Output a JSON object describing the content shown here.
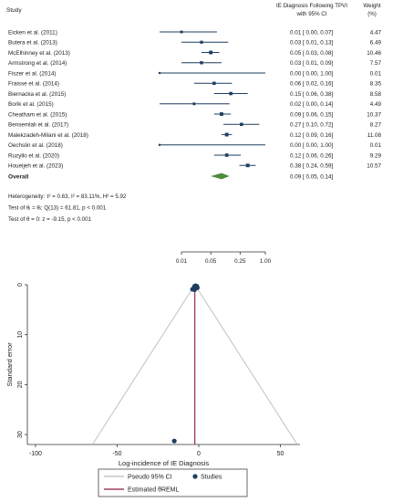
{
  "chart_data": [
    {
      "type": "forest",
      "header": {
        "study": "Study",
        "effect_line1": "IE Diagnosis Following TPVI",
        "effect_line2": "with 95% CI",
        "weight_line1": "Weight",
        "weight_line2": "(%)"
      },
      "studies": [
        {
          "name": "Eicken et al. (2011)",
          "est": 0.01,
          "lo": 0.0,
          "hi": 0.07,
          "ci_text": "0.01 [ 0.00, 0.07]",
          "weight": "4.47"
        },
        {
          "name": "Butera et al. (2013)",
          "est": 0.03,
          "lo": 0.01,
          "hi": 0.13,
          "ci_text": "0.03 [ 0.01, 0.13]",
          "weight": "6.49"
        },
        {
          "name": "McElhinney et al. (2013)",
          "est": 0.05,
          "lo": 0.03,
          "hi": 0.08,
          "ci_text": "0.05 [ 0.03, 0.08]",
          "weight": "10.46"
        },
        {
          "name": "Armstrong et al. (2014)",
          "est": 0.03,
          "lo": 0.01,
          "hi": 0.09,
          "ci_text": "0.03 [ 0.01, 0.09]",
          "weight": "7.57"
        },
        {
          "name": "Fiszer et al. (2014)",
          "est": 0.0,
          "lo": 0.0,
          "hi": 1.0,
          "ci_text": "0.00 [ 0.00, 1.00]",
          "weight": "0.01"
        },
        {
          "name": "Fraisse et al. (2014)",
          "est": 0.06,
          "lo": 0.02,
          "hi": 0.16,
          "ci_text": "0.06 [ 0.02, 0.16]",
          "weight": "8.35"
        },
        {
          "name": "Biernacka et al. (2015)",
          "est": 0.15,
          "lo": 0.06,
          "hi": 0.38,
          "ci_text": "0.15 [ 0.06, 0.38]",
          "weight": "8.58"
        },
        {
          "name": "Borik et al. (2015)",
          "est": 0.02,
          "lo": 0.0,
          "hi": 0.14,
          "ci_text": "0.02 [ 0.00, 0.14]",
          "weight": "4.49"
        },
        {
          "name": "Cheatham et al. (2015)",
          "est": 0.09,
          "lo": 0.06,
          "hi": 0.15,
          "ci_text": "0.09 [ 0.06, 0.15]",
          "weight": "10.37"
        },
        {
          "name": "Bensemlali et al. (2017)",
          "est": 0.27,
          "lo": 0.1,
          "hi": 0.72,
          "ci_text": "0.27 [ 0.10, 0.72]",
          "weight": "8.27"
        },
        {
          "name": "Malekzadeh-Milani et al. (2018)",
          "est": 0.12,
          "lo": 0.09,
          "hi": 0.16,
          "ci_text": "0.12 [ 0.09, 0.16]",
          "weight": "11.08"
        },
        {
          "name": "Oechslin et al. (2018)",
          "est": 0.0,
          "lo": 0.0,
          "hi": 1.0,
          "ci_text": "0.00 [ 0.00, 1.00]",
          "weight": "0.01"
        },
        {
          "name": "Ruzyllo et al. (2020)",
          "est": 0.12,
          "lo": 0.06,
          "hi": 0.26,
          "ci_text": "0.12 [ 0.06, 0.26]",
          "weight": "9.29"
        },
        {
          "name": "Houeijeh et al. (2023)",
          "est": 0.38,
          "lo": 0.24,
          "hi": 0.59,
          "ci_text": "0.38 [ 0.24, 0.59]",
          "weight": "10.57"
        }
      ],
      "overall": {
        "label": "Overall",
        "est": 0.09,
        "lo": 0.05,
        "hi": 0.14,
        "ci_text": "0.09 [ 0.05, 0.14]"
      },
      "notes": [
        "Heterogeneity: τ² = 0.63, I² = 83.11%, H² = 5.92",
        "Test of θᵢ = θⱼ: Q(13) = 61.81, p < 0.001",
        "Test of θ = 0: z = -9.15, p < 0.001"
      ],
      "x_scale": "log",
      "x_ticks": [
        0.01,
        0.05,
        0.25,
        1.0
      ],
      "x_tick_labels": [
        "0.01",
        "0.05",
        "0.25",
        "1.00"
      ],
      "colors": {
        "marker": "#1f3f5f",
        "ci": "#1f3f5f",
        "diamond": "#4f8a3a"
      }
    },
    {
      "type": "funnel",
      "xlabel": "Log-incidence of IE Diagnosis",
      "ylabel": "Standard error",
      "xlim": [
        -105,
        62
      ],
      "ylim": [
        0,
        32
      ],
      "x_ticks": [
        -100,
        -50,
        0,
        50
      ],
      "y_ticks": [
        0,
        10,
        20,
        30
      ],
      "y_reversed": true,
      "estimate": -2.4,
      "points": [
        {
          "x": -2.5,
          "y": 0.3
        },
        {
          "x": -1.8,
          "y": 0.5
        },
        {
          "x": -2.9,
          "y": 0.6
        },
        {
          "x": -1.6,
          "y": 0.4
        },
        {
          "x": -2.2,
          "y": 0.7
        },
        {
          "x": -1.2,
          "y": 0.3
        },
        {
          "x": -3.3,
          "y": 0.8
        },
        {
          "x": -2.6,
          "y": 1.0
        },
        {
          "x": -3.8,
          "y": 0.9
        },
        {
          "x": -0.9,
          "y": 0.6
        },
        {
          "x": -2.0,
          "y": 0.2
        },
        {
          "x": -15.0,
          "y": 31.3
        }
      ],
      "legend": [
        {
          "label": "Pseudo 95% CI",
          "kind": "line",
          "color": "#bbbbbb"
        },
        {
          "label": "Studies",
          "kind": "dot",
          "color": "#1f3f5f"
        },
        {
          "label": "Estimated θREML",
          "kind": "line",
          "color": "#8b1a3a"
        }
      ]
    }
  ]
}
